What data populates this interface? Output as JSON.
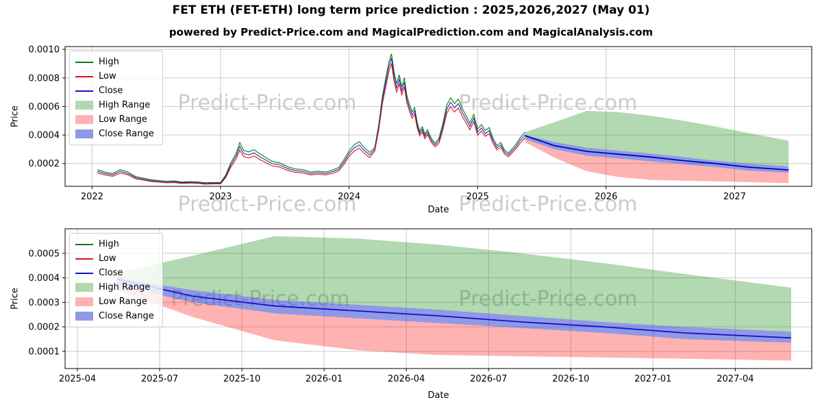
{
  "page": {
    "title": "FET ETH (FET-ETH) long term price prediction : 2025,2026,2027 (May 01)",
    "subtitle": "powered by Predict-Price.com and MagicalPrediction.com and MagicalAnalysis.com"
  },
  "watermark": "Predict-Price.com",
  "legend_items": [
    {
      "label": "High",
      "swatch": "line",
      "color": "#008000"
    },
    {
      "label": "Low",
      "swatch": "line",
      "color": "#dd1111"
    },
    {
      "label": "Close",
      "swatch": "line",
      "color": "#1111cc"
    },
    {
      "label": "High Range",
      "swatch": "patch",
      "color": "#008000",
      "alpha": 0.3
    },
    {
      "label": "Low Range",
      "swatch": "patch",
      "color": "#ff0000",
      "alpha": 0.3
    },
    {
      "label": "Close Range",
      "swatch": "patch",
      "color": "#2233cc",
      "alpha": 0.5
    }
  ],
  "chart_data": [
    {
      "type": "line",
      "title": "",
      "ylabel": "Price",
      "xlabel": "Date",
      "grid": true,
      "legend_position": "upper-left",
      "xlim": [
        2021.79,
        2027.6
      ],
      "ylim": [
        4e-05,
        0.00102
      ],
      "x_tick_values": [
        2022,
        2023,
        2024,
        2025,
        2026,
        2027
      ],
      "x_tick_labels": [
        "2022",
        "2023",
        "2024",
        "2025",
        "2026",
        "2027"
      ],
      "y_tick_values": [
        0.0002,
        0.0004,
        0.0006,
        0.0008,
        0.001
      ],
      "y_tick_labels": [
        "0.0002",
        "0.0004",
        "0.0006",
        "0.0008",
        "0.0010"
      ],
      "x_history": [
        2022.04,
        2022.1,
        2022.16,
        2022.22,
        2022.28,
        2022.34,
        2022.4,
        2022.46,
        2022.52,
        2022.58,
        2022.64,
        2022.7,
        2022.76,
        2022.82,
        2022.88,
        2022.94,
        2023.0,
        2023.04,
        2023.08,
        2023.12,
        2023.15,
        2023.18,
        2023.22,
        2023.26,
        2023.3,
        2023.34,
        2023.4,
        2023.46,
        2023.52,
        2023.58,
        2023.64,
        2023.7,
        2023.76,
        2023.82,
        2023.88,
        2023.92,
        2023.96,
        2024.0,
        2024.04,
        2024.08,
        2024.12,
        2024.16,
        2024.2,
        2024.23,
        2024.26,
        2024.29,
        2024.31,
        2024.33,
        2024.35,
        2024.37,
        2024.39,
        2024.41,
        2024.43,
        2024.45,
        2024.47,
        2024.49,
        2024.51,
        2024.53,
        2024.55,
        2024.57,
        2024.59,
        2024.61,
        2024.63,
        2024.65,
        2024.67,
        2024.7,
        2024.73,
        2024.76,
        2024.79,
        2024.82,
        2024.85,
        2024.88,
        2024.91,
        2024.94,
        2024.97,
        2025.0,
        2025.03,
        2025.06,
        2025.09,
        2025.12,
        2025.15,
        2025.18,
        2025.21,
        2025.24,
        2025.27,
        2025.3,
        2025.33,
        2025.37
      ],
      "x_forecast": [
        2025.37,
        2025.6,
        2025.85,
        2026.1,
        2026.35,
        2026.6,
        2026.85,
        2027.1,
        2027.42
      ],
      "series": [
        {
          "name": "High",
          "color": "#008000",
          "lw": 1.1,
          "x_ref": "x_history",
          "y": [
            0.000157,
            0.00014,
            0.00013,
            0.000157,
            0.00014,
            0.000108,
            9.7e-05,
            8.6e-05,
            8.1e-05,
            7.6e-05,
            7.8e-05,
            7e-05,
            7.3e-05,
            7.1e-05,
            6.5e-05,
            6.7e-05,
            6.7e-05,
            0.000119,
            0.000205,
            0.00027,
            0.000346,
            0.000292,
            0.000281,
            0.000297,
            0.00027,
            0.000248,
            0.000216,
            0.000205,
            0.000178,
            0.000162,
            0.000157,
            0.00014,
            0.000146,
            0.00014,
            0.000157,
            0.000173,
            0.000227,
            0.000289,
            0.000332,
            0.000353,
            0.00031,
            0.000278,
            0.000312,
            0.000468,
            0.000676,
            0.000822,
            0.000915,
            0.00097,
            0.000842,
            0.000759,
            0.000822,
            0.000738,
            0.000801,
            0.000676,
            0.000614,
            0.000562,
            0.000593,
            0.000489,
            0.000426,
            0.000458,
            0.000406,
            0.000437,
            0.000395,
            0.000364,
            0.000343,
            0.000378,
            0.000483,
            0.000609,
            0.000662,
            0.00062,
            0.000651,
            0.000588,
            0.000536,
            0.000483,
            0.000546,
            0.000441,
            0.000473,
            0.000431,
            0.000452,
            0.000378,
            0.000326,
            0.000347,
            0.000294,
            0.000273,
            0.000305,
            0.000336,
            0.000378,
            0.00042
          ]
        },
        {
          "name": "Close",
          "color": "#1111cc",
          "lw": 1.0,
          "x_ref": "x_history",
          "y": [
            0.000145,
            0.00013,
            0.00012,
            0.000145,
            0.00013,
            0.0001,
            9e-05,
            8e-05,
            7.5e-05,
            7e-05,
            7.2e-05,
            6.5e-05,
            6.8e-05,
            6.6e-05,
            6e-05,
            6.2e-05,
            6.2e-05,
            0.00011,
            0.00019,
            0.00025,
            0.00032,
            0.00027,
            0.00026,
            0.000275,
            0.00025,
            0.00023,
            0.0002,
            0.00019,
            0.000165,
            0.00015,
            0.000145,
            0.00013,
            0.000135,
            0.00013,
            0.000145,
            0.00016,
            0.00021,
            0.00027,
            0.00031,
            0.00033,
            0.00029,
            0.00026,
            0.0003,
            0.00045,
            0.00065,
            0.00079,
            0.00088,
            0.00094,
            0.00081,
            0.00073,
            0.00079,
            0.00071,
            0.00077,
            0.00065,
            0.00059,
            0.00054,
            0.00057,
            0.00047,
            0.00041,
            0.00044,
            0.00039,
            0.00042,
            0.00038,
            0.00035,
            0.00033,
            0.00036,
            0.00046,
            0.00058,
            0.00063,
            0.00059,
            0.00062,
            0.00056,
            0.00051,
            0.00046,
            0.00052,
            0.00042,
            0.00045,
            0.00041,
            0.00043,
            0.00036,
            0.00031,
            0.00033,
            0.00028,
            0.00026,
            0.00029,
            0.00032,
            0.00036,
            0.0004
          ]
        },
        {
          "name": "Low",
          "color": "#dd1111",
          "lw": 1.1,
          "x_ref": "x_history",
          "y": [
            0.000133,
            0.00012,
            0.00011,
            0.000133,
            0.00012,
            9.2e-05,
            8.3e-05,
            7.4e-05,
            6.9e-05,
            6.4e-05,
            6.6e-05,
            6e-05,
            6.3e-05,
            6.1e-05,
            5.5e-05,
            5.7e-05,
            5.7e-05,
            0.000101,
            0.000175,
            0.00023,
            0.000294,
            0.000248,
            0.000239,
            0.000253,
            0.00023,
            0.000212,
            0.000184,
            0.000175,
            0.000152,
            0.000138,
            0.000133,
            0.00012,
            0.000124,
            0.00012,
            0.000133,
            0.000147,
            0.000193,
            0.000251,
            0.000288,
            0.000307,
            0.00027,
            0.000242,
            0.000288,
            0.000432,
            0.000624,
            0.000758,
            0.000845,
            0.000902,
            0.000778,
            0.000701,
            0.000758,
            0.000682,
            0.000739,
            0.000624,
            0.000566,
            0.000518,
            0.000547,
            0.000451,
            0.000394,
            0.000422,
            0.000374,
            0.000403,
            0.000365,
            0.000336,
            0.000317,
            0.000342,
            0.000437,
            0.000551,
            0.000599,
            0.000561,
            0.000589,
            0.000532,
            0.000485,
            0.000437,
            0.000494,
            0.000399,
            0.000428,
            0.00039,
            0.000409,
            0.000342,
            0.000295,
            0.000314,
            0.000266,
            0.000247,
            0.000276,
            0.000304,
            0.000342,
            0.00038
          ]
        },
        {
          "name": "Close Forecast",
          "color": "#0000bb",
          "lw": 1.8,
          "x_ref": "x_forecast",
          "y": [
            0.000395,
            0.000325,
            0.000285,
            0.000265,
            0.000245,
            0.00022,
            0.0002,
            0.000175,
            0.000155
          ]
        }
      ],
      "bands": [
        {
          "name": "High Range",
          "color": "#008000",
          "alpha": 0.3,
          "x_ref": "x_forecast",
          "upper": [
            0.00042,
            0.00049,
            0.00057,
            0.00056,
            0.000535,
            0.0005,
            0.00046,
            0.000415,
            0.00036
          ],
          "lower": [
            0.0004,
            0.00035,
            0.00031,
            0.00029,
            0.00027,
            0.000245,
            0.00022,
            0.0002,
            0.00018
          ]
        },
        {
          "name": "Low Range",
          "color": "#ff0000",
          "alpha": 0.3,
          "x_ref": "x_forecast",
          "upper": [
            0.00037,
            0.0003,
            0.000255,
            0.000235,
            0.000215,
            0.000195,
            0.000175,
            0.00015,
            0.000135
          ],
          "lower": [
            0.00035,
            0.00024,
            0.000145,
            0.000105,
            8.5e-05,
            8e-05,
            7.5e-05,
            7e-05,
            6.2e-05
          ]
        },
        {
          "name": "Close Range",
          "color": "#2233cc",
          "alpha": 0.5,
          "x_ref": "x_forecast",
          "upper": [
            0.0004,
            0.00035,
            0.00031,
            0.00029,
            0.00027,
            0.000245,
            0.00022,
            0.0002,
            0.00018
          ],
          "lower": [
            0.00037,
            0.0003,
            0.000255,
            0.000235,
            0.000215,
            0.000195,
            0.000175,
            0.00015,
            0.000135
          ]
        }
      ]
    },
    {
      "type": "line",
      "title": "",
      "ylabel": "Price",
      "xlabel": "Date",
      "grid": true,
      "legend_position": "upper-left",
      "xlim": [
        2025.2125,
        2027.4825
      ],
      "ylim": [
        3e-05,
        0.0006
      ],
      "x_tick_values": [
        2025.25,
        2025.5,
        2025.75,
        2026.0,
        2026.25,
        2026.5,
        2026.75,
        2027.0,
        2027.25
      ],
      "x_tick_labels": [
        "2025-04",
        "2025-07",
        "2025-10",
        "2026-01",
        "2026-04",
        "2026-07",
        "2026-10",
        "2027-01",
        "2027-04"
      ],
      "y_tick_values": [
        0.0001,
        0.0002,
        0.0003,
        0.0004,
        0.0005
      ],
      "y_tick_labels": [
        "0.0001",
        "0.0002",
        "0.0003",
        "0.0004",
        "0.0005"
      ],
      "x_forecast": [
        2025.37,
        2025.6,
        2025.85,
        2026.1,
        2026.35,
        2026.6,
        2026.85,
        2027.1,
        2027.42
      ],
      "series": [
        {
          "name": "Close",
          "color": "#1111cc",
          "lw": 1.8,
          "x_ref": "x_forecast",
          "y": [
            0.000395,
            0.000325,
            0.000285,
            0.000265,
            0.000245,
            0.00022,
            0.0002,
            0.000175,
            0.000155
          ]
        }
      ],
      "bands": [
        {
          "name": "High Range",
          "color": "#008000",
          "alpha": 0.3,
          "x_ref": "x_forecast",
          "upper": [
            0.00042,
            0.00049,
            0.00057,
            0.00056,
            0.000535,
            0.0005,
            0.00046,
            0.000415,
            0.00036
          ],
          "lower": [
            0.0004,
            0.00035,
            0.00031,
            0.00029,
            0.00027,
            0.000245,
            0.00022,
            0.0002,
            0.00018
          ]
        },
        {
          "name": "Low Range",
          "color": "#ff0000",
          "alpha": 0.3,
          "x_ref": "x_forecast",
          "upper": [
            0.00037,
            0.0003,
            0.000255,
            0.000235,
            0.000215,
            0.000195,
            0.000175,
            0.00015,
            0.000135
          ],
          "lower": [
            0.00035,
            0.00024,
            0.000145,
            0.000105,
            8.5e-05,
            8e-05,
            7.5e-05,
            7e-05,
            6.2e-05
          ]
        },
        {
          "name": "Close Range",
          "color": "#2233cc",
          "alpha": 0.5,
          "x_ref": "x_forecast",
          "upper": [
            0.0004,
            0.00035,
            0.00031,
            0.00029,
            0.00027,
            0.000245,
            0.00022,
            0.0002,
            0.00018
          ],
          "lower": [
            0.00037,
            0.0003,
            0.000255,
            0.000235,
            0.000215,
            0.000195,
            0.000175,
            0.00015,
            0.000135
          ]
        }
      ]
    }
  ]
}
